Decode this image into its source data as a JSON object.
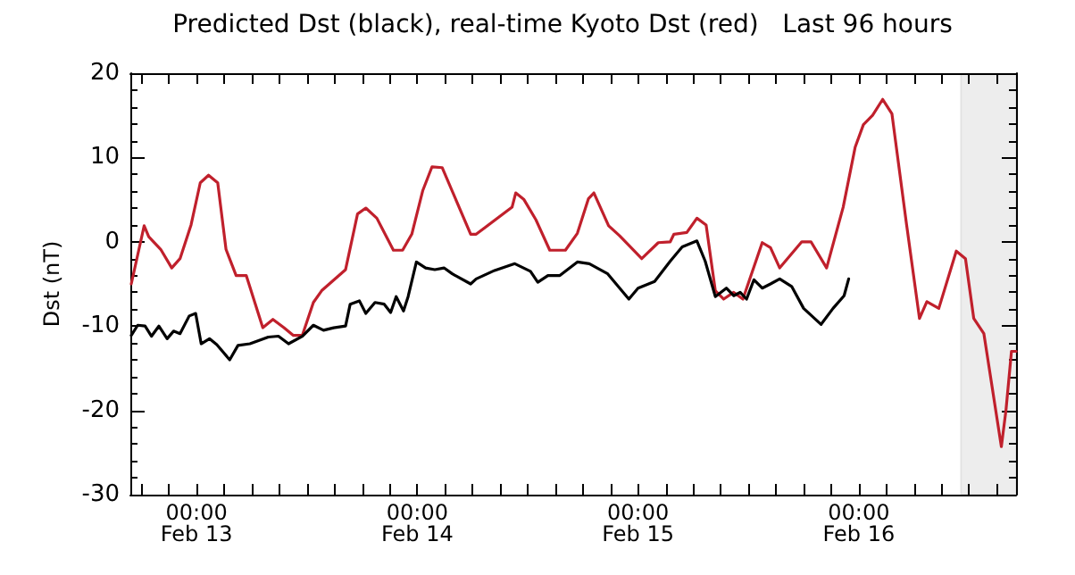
{
  "chart_data": {
    "type": "line",
    "title": "Predicted Dst (black), real-time Kyoto Dst (red)   Last 96 hours",
    "ylabel": "Dst (nT)",
    "marker": "none",
    "line_style": "solid",
    "xlim": [
      "--02-12T16:48",
      "--02-16T17:06"
    ],
    "xticks": [
      {
        "value": "--02-12T18:00",
        "label": null
      },
      {
        "value": "--02-12T21:00",
        "label": null
      },
      {
        "value": "--02-13T00:00",
        "label": "00:00\nFeb 13"
      },
      {
        "value": "--02-13T03:00",
        "label": null
      },
      {
        "value": "--02-13T06:00",
        "label": null
      },
      {
        "value": "--02-13T09:00",
        "label": null
      },
      {
        "value": "--02-13T12:00",
        "label": null
      },
      {
        "value": "--02-13T15:00",
        "label": null
      },
      {
        "value": "--02-13T18:00",
        "label": null
      },
      {
        "value": "--02-13T21:00",
        "label": null
      },
      {
        "value": "--02-14T00:00",
        "label": "00:00\nFeb 14"
      },
      {
        "value": "--02-14T03:00",
        "label": null
      },
      {
        "value": "--02-14T06:00",
        "label": null
      },
      {
        "value": "--02-14T09:00",
        "label": null
      },
      {
        "value": "--02-14T12:00",
        "label": null
      },
      {
        "value": "--02-14T15:00",
        "label": null
      },
      {
        "value": "--02-14T18:00",
        "label": null
      },
      {
        "value": "--02-14T21:00",
        "label": null
      },
      {
        "value": "--02-15T00:00",
        "label": "00:00\nFeb 15"
      },
      {
        "value": "--02-15T03:00",
        "label": null
      },
      {
        "value": "--02-15T06:00",
        "label": null
      },
      {
        "value": "--02-15T09:00",
        "label": null
      },
      {
        "value": "--02-15T12:00",
        "label": null
      },
      {
        "value": "--02-15T15:00",
        "label": null
      },
      {
        "value": "--02-15T18:00",
        "label": null
      },
      {
        "value": "--02-15T21:00",
        "label": null
      },
      {
        "value": "--02-16T00:00",
        "label": "00:00\nFeb 16"
      },
      {
        "value": "--02-16T03:00",
        "label": null
      },
      {
        "value": "--02-16T06:00",
        "label": null
      },
      {
        "value": "--02-16T09:00",
        "label": null
      },
      {
        "value": "--02-16T12:00",
        "label": null
      },
      {
        "value": "--02-16T15:00",
        "label": null
      }
    ],
    "ylim": [
      -30,
      20
    ],
    "yticks": [
      -30,
      -20,
      -10,
      0,
      10,
      20
    ],
    "bands": [
      {
        "axis": "x",
        "from": "--02-16T11:06",
        "to": "--02-16T17:06",
        "color": "#000000"
      }
    ],
    "series": [
      {
        "color": "#c0202c",
        "x": [
          "--02-12T16:54",
          "--02-12T18:18",
          "--02-12T18:48",
          "--02-12T20:06",
          "--02-12T21:18",
          "--02-12T22:12",
          "--02-12T23:24",
          "--02-13T00:24",
          "--02-13T01:18",
          "--02-13T02:18",
          "--02-13T03:12",
          "--02-13T04:18",
          "--02-13T05:24",
          "--02-13T07:12",
          "--02-13T08:18",
          "--02-13T09:30",
          "--02-13T10:30",
          "--02-13T11:30",
          "--02-13T12:42",
          "--02-13T13:36",
          "--02-13T16:12",
          "--02-13T17:30",
          "--02-13T18:24",
          "--02-13T19:36",
          "--02-13T21:24",
          "--02-13T22:24",
          "--02-13T23:24",
          "--02-14T00:36",
          "--02-14T01:36",
          "--02-14T02:42",
          "--02-14T05:48",
          "--02-14T06:24",
          "--02-14T10:18",
          "--02-14T10:42",
          "--02-14T11:36",
          "--02-14T12:54",
          "--02-14T14:24",
          "--02-14T16:06",
          "--02-14T17:24",
          "--02-14T18:36",
          "--02-14T19:12",
          "--02-14T20:48",
          "--02-14T22:00",
          "--02-15T00:24",
          "--02-15T02:12",
          "--02-15T03:30",
          "--02-15T03:54",
          "--02-15T05:18",
          "--02-15T06:24",
          "--02-15T07:24",
          "--02-15T08:24",
          "--02-15T09:18",
          "--02-15T10:24",
          "--02-15T11:24",
          "--02-15T13:30",
          "--02-15T14:24",
          "--02-15T15:24",
          "--02-15T17:48",
          "--02-15T18:48",
          "--02-15T20:30",
          "--02-15T22:18",
          "--02-15T23:36",
          "--02-16T00:30",
          "--02-16T01:30",
          "--02-16T02:36",
          "--02-16T03:36",
          "--02-16T05:12",
          "--02-16T06:36",
          "--02-16T07:24",
          "--02-16T08:42",
          "--02-16T10:36",
          "--02-16T11:36",
          "--02-16T12:30",
          "--02-16T13:36",
          "--02-16T15:30",
          "--02-16T16:00",
          "--02-16T16:36",
          "--02-16T17:06"
        ],
        "values": [
          -5,
          1.9,
          0.6,
          -0.9,
          -3.1,
          -2,
          2,
          7,
          7.9,
          7,
          -0.9,
          -4,
          -4,
          -10.2,
          -9.2,
          -10.2,
          -11.1,
          -11.1,
          -7.2,
          -5.8,
          -3.3,
          3.3,
          4,
          2.8,
          -1,
          -1,
          0.9,
          6.1,
          8.9,
          8.8,
          0.9,
          0.9,
          4.1,
          5.8,
          5,
          2.6,
          -1,
          -1,
          1,
          5.1,
          5.8,
          1.9,
          0.7,
          -2,
          -0.1,
          0,
          0.9,
          1.1,
          2.8,
          2,
          -5.8,
          -6.8,
          -6,
          -6.8,
          -0.1,
          -0.7,
          -3.1,
          0,
          0,
          -3.1,
          4.1,
          11.2,
          13.9,
          15,
          16.9,
          15.2,
          2,
          -9.1,
          -7.1,
          -7.9,
          -1.1,
          -2,
          -9.1,
          -10.9,
          -24.3,
          -20,
          -13,
          -13
        ]
      },
      {
        "color": "#000000",
        "x": [
          "--02-12T16:54",
          "--02-12T17:36",
          "--02-12T18:24",
          "--02-12T19:06",
          "--02-12T19:54",
          "--02-12T20:48",
          "--02-12T21:30",
          "--02-12T22:12",
          "--02-12T23:12",
          "--02-12T23:54",
          "--02-13T00:30",
          "--02-13T01:24",
          "--02-13T02:12",
          "--02-13T03:36",
          "--02-13T04:30",
          "--02-13T05:48",
          "--02-13T07:48",
          "--02-13T08:54",
          "--02-13T10:00",
          "--02-13T11:30",
          "--02-13T12:42",
          "--02-13T13:48",
          "--02-13T14:54",
          "--02-13T16:12",
          "--02-13T16:42",
          "--02-13T17:42",
          "--02-13T18:24",
          "--02-13T19:24",
          "--02-13T20:24",
          "--02-13T21:06",
          "--02-13T21:42",
          "--02-13T22:30",
          "--02-13T23:00",
          "--02-13T23:54",
          "--02-14T00:54",
          "--02-14T01:54",
          "--02-14T02:54",
          "--02-14T03:48",
          "--02-14T05:48",
          "--02-14T06:24",
          "--02-14T08:24",
          "--02-14T10:36",
          "--02-14T12:18",
          "--02-14T13:06",
          "--02-14T14:12",
          "--02-14T15:30",
          "--02-14T17:24",
          "--02-14T18:42",
          "--02-14T20:42",
          "--02-14T23:00",
          "--02-15T00:00",
          "--02-15T01:48",
          "--02-15T03:30",
          "--02-15T04:48",
          "--02-15T06:24",
          "--02-15T07:18",
          "--02-15T08:24",
          "--02-15T09:36",
          "--02-15T10:24",
          "--02-15T11:06",
          "--02-15T11:48",
          "--02-15T12:36",
          "--02-15T13:30",
          "--02-15T14:24",
          "--02-15T15:24",
          "--02-15T16:42",
          "--02-15T18:00",
          "--02-15T19:54",
          "--02-15T21:12",
          "--02-15T22:24",
          "--02-15T22:54"
        ],
        "values": [
          -11.1,
          -9.9,
          -10,
          -11.2,
          -10,
          -11.5,
          -10.6,
          -10.9,
          -8.8,
          -8.5,
          -12.1,
          -11.5,
          -12.2,
          -14,
          -12.3,
          -12.1,
          -11.3,
          -11.2,
          -12.1,
          -11.2,
          -9.9,
          -10.5,
          -10.2,
          -10,
          -7.4,
          -7,
          -8.5,
          -7.2,
          -7.4,
          -8.4,
          -6.5,
          -8.2,
          -6.5,
          -2.4,
          -3.1,
          -3.3,
          -3.1,
          -3.8,
          -5,
          -4.4,
          -3.4,
          -2.6,
          -3.5,
          -4.8,
          -4,
          -4,
          -2.4,
          -2.6,
          -3.8,
          -6.8,
          -5.5,
          -4.7,
          -2.3,
          -0.6,
          0.1,
          -2.3,
          -6.5,
          -5.5,
          -6.4,
          -6,
          -6.8,
          -4.5,
          -5.5,
          -5,
          -4.4,
          -5.3,
          -7.9,
          -9.8,
          -7.9,
          -6.4,
          -4.4
        ]
      }
    ]
  }
}
